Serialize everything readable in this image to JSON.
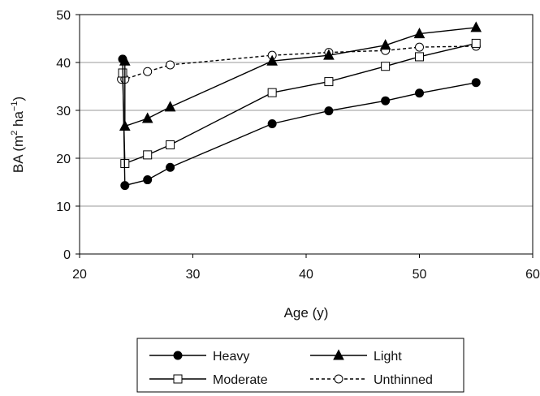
{
  "chart_data": {
    "type": "line",
    "xlabel": "Age (y)",
    "ylabel_parts": [
      "BA (m",
      "2",
      " ha",
      "−1",
      ")"
    ],
    "xlim": [
      20,
      60
    ],
    "ylim": [
      0,
      50
    ],
    "xticks": [
      "20",
      "30",
      "40",
      "50",
      "60"
    ],
    "yticks": [
      "0",
      "10",
      "20",
      "30",
      "40",
      "50"
    ],
    "grid": "horizontal",
    "legend_position": "bottom",
    "series": [
      {
        "name": "Heavy",
        "marker": "filled-circle",
        "line_style": "solid",
        "points": [
          [
            23.8,
            40.7
          ],
          [
            24,
            14.3
          ],
          [
            26,
            15.5
          ],
          [
            28,
            18.1
          ],
          [
            37,
            27.2
          ],
          [
            42,
            29.9
          ],
          [
            47,
            32.0
          ],
          [
            50,
            33.6
          ],
          [
            55,
            35.8
          ]
        ]
      },
      {
        "name": "Light",
        "marker": "filled-triangle",
        "line_style": "solid",
        "points": [
          [
            24,
            40.3
          ],
          [
            24,
            26.7
          ],
          [
            26,
            28.3
          ],
          [
            28,
            30.7
          ],
          [
            37,
            40.3
          ],
          [
            42,
            41.5
          ],
          [
            47,
            43.6
          ],
          [
            50,
            46.0
          ],
          [
            55,
            47.3
          ]
        ]
      },
      {
        "name": "Moderate",
        "marker": "open-square",
        "line_style": "solid",
        "points": [
          [
            23.8,
            37.8
          ],
          [
            24,
            18.9
          ],
          [
            26,
            20.7
          ],
          [
            28,
            22.8
          ],
          [
            37,
            33.7
          ],
          [
            42,
            36.0
          ],
          [
            47,
            39.2
          ],
          [
            50,
            41.2
          ],
          [
            55,
            44.0
          ]
        ]
      },
      {
        "name": "Unthinned",
        "marker": "open-circle",
        "line_style": "dashed",
        "points": [
          [
            23.7,
            36.5
          ],
          [
            24,
            36.5
          ],
          [
            26,
            38.1
          ],
          [
            28,
            39.5
          ],
          [
            37,
            41.5
          ],
          [
            42,
            42.1
          ],
          [
            47,
            42.5
          ],
          [
            50,
            43.2
          ],
          [
            55,
            43.4
          ]
        ]
      }
    ]
  }
}
